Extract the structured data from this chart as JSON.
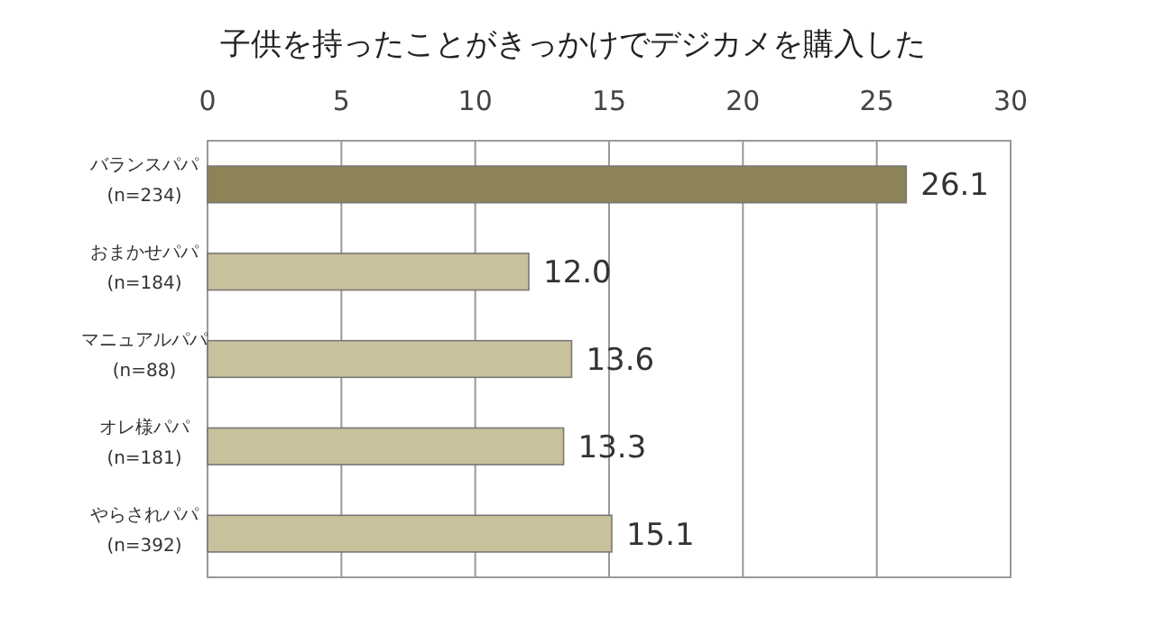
{
  "chart_data": {
    "type": "bar",
    "orientation": "horizontal",
    "title": "子供を持ったことがきっかけでデジカメを購入した",
    "categories": [
      "バランスパパ\n(n=234)",
      "おまかせパパ\n(n=184)",
      "マニュアルパパ\n(n=88)",
      "オレ様パパ\n(n=181)",
      "やらされパパ\n(n=392)"
    ],
    "values": [
      26.1,
      12.0,
      13.6,
      13.3,
      15.1
    ],
    "value_labels": [
      "26.1",
      "12.0",
      "13.6",
      "13.3",
      "15.1"
    ],
    "colors": [
      "#8c8456",
      "#c9c09c",
      "#c9c09c",
      "#c9c09c",
      "#c9c09c"
    ],
    "xlim": [
      0,
      30
    ],
    "xticks": [
      0,
      5,
      10,
      15,
      20,
      25,
      30
    ],
    "grid": "x"
  }
}
